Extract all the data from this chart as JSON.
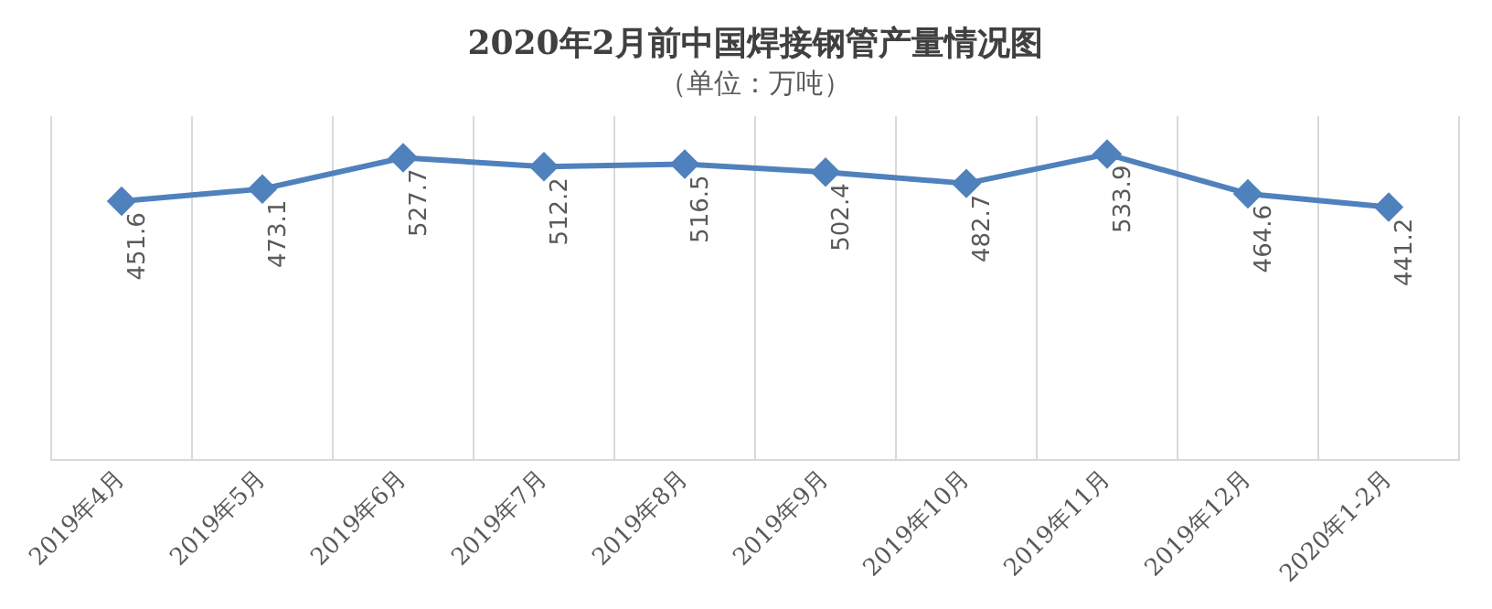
{
  "chart_data": {
    "type": "line",
    "title": "2020年2月前中国焊接钢管产量情况图",
    "subtitle": "（单位：万吨）",
    "categories": [
      "2019年4月",
      "2019年5月",
      "2019年6月",
      "2019年7月",
      "2019年8月",
      "2019年9月",
      "2019年10月",
      "2019年11月",
      "2019年12月",
      "2020年1-2月"
    ],
    "series": [
      {
        "color": "#4f81bd",
        "values": [
          451.6,
          473.1,
          527.7,
          512.2,
          516.5,
          502.4,
          482.7,
          533.9,
          464.6,
          441.2
        ]
      }
    ],
    "ylim": [
      0,
      600
    ],
    "marker": "diamond",
    "data_labels": true,
    "grid": "x",
    "legend": false,
    "tick_labels": "x"
  }
}
